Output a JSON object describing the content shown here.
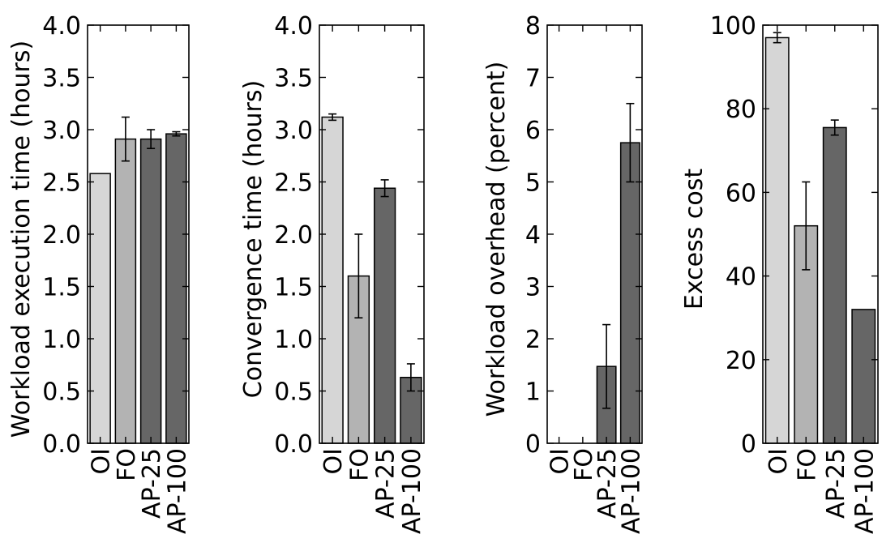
{
  "chart_data": [
    {
      "type": "bar",
      "title": "",
      "ylabel": "Workload execution time (hours)",
      "categories": [
        "OI",
        "FO",
        "AP-25",
        "AP-100"
      ],
      "values": [
        2.58,
        2.91,
        2.91,
        2.96
      ],
      "errors": [
        0,
        0.21,
        0.09,
        0.02
      ],
      "ylim": [
        0,
        4.0
      ],
      "yticks": [
        "0.0",
        "0.5",
        "1.0",
        "1.5",
        "2.0",
        "2.5",
        "3.0",
        "3.5",
        "4.0"
      ],
      "bar_colors": [
        "#d6d6d6",
        "#b3b3b3",
        "#666666",
        "#666666"
      ]
    },
    {
      "type": "bar",
      "title": "",
      "ylabel": "Convergence time (hours)",
      "categories": [
        "OI",
        "FO",
        "AP-25",
        "AP-100"
      ],
      "values": [
        3.12,
        1.6,
        2.44,
        0.63
      ],
      "errors": [
        0.03,
        0.4,
        0.08,
        0.13
      ],
      "ylim": [
        0,
        4.0
      ],
      "yticks": [
        "0.0",
        "0.5",
        "1.0",
        "1.5",
        "2.0",
        "2.5",
        "3.0",
        "3.5",
        "4.0"
      ],
      "bar_colors": [
        "#d6d6d6",
        "#b3b3b3",
        "#666666",
        "#666666"
      ]
    },
    {
      "type": "bar",
      "title": "",
      "ylabel": "Workload overhead (percent)",
      "categories": [
        "OI",
        "FO",
        "AP-25",
        "AP-100"
      ],
      "values": [
        0,
        0,
        1.47,
        5.75
      ],
      "errors": [
        0,
        0,
        0.8,
        0.75
      ],
      "ylim": [
        0,
        8
      ],
      "yticks": [
        "0",
        "1",
        "2",
        "3",
        "4",
        "5",
        "6",
        "7",
        "8"
      ],
      "bar_colors": [
        "#d6d6d6",
        "#b3b3b3",
        "#666666",
        "#666666"
      ]
    },
    {
      "type": "bar",
      "title": "",
      "ylabel": "Excess cost",
      "categories": [
        "OI",
        "FO",
        "AP-25",
        "AP-100"
      ],
      "values": [
        97,
        52,
        75.5,
        32
      ],
      "errors": [
        1.2,
        10.5,
        1.8,
        0
      ],
      "ylim": [
        0,
        100
      ],
      "yticks": [
        "0",
        "20",
        "40",
        "60",
        "80",
        "100"
      ],
      "bar_colors": [
        "#d6d6d6",
        "#b3b3b3",
        "#666666",
        "#666666"
      ]
    }
  ]
}
